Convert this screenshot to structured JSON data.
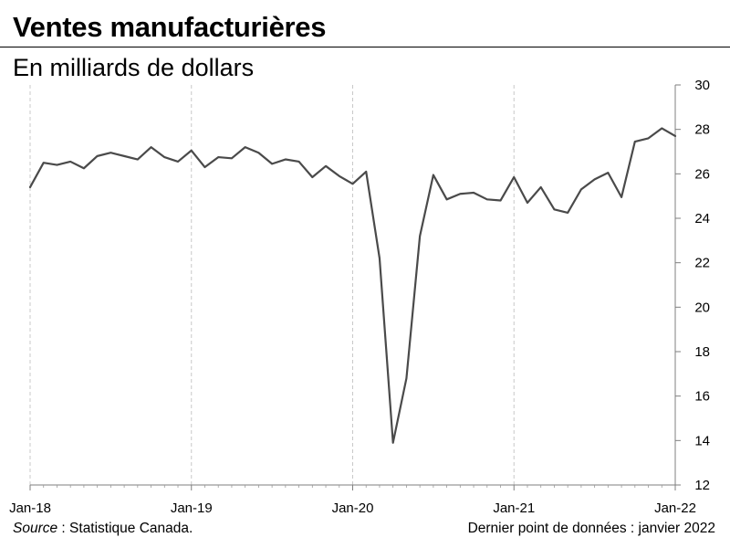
{
  "header": {
    "title": "Ventes manufacturières",
    "subtitle": "En milliards de dollars"
  },
  "footer": {
    "source_label": "Source",
    "source_text": " : Statistique Canada.",
    "last_point": "Dernier point de données : janvier 2022"
  },
  "chart_data": {
    "type": "line",
    "title": "Ventes manufacturières",
    "subtitle": "En milliards de dollars",
    "xlabel": "",
    "ylabel": "",
    "x_ticks": [
      "Jan-18",
      "Jan-19",
      "Jan-20",
      "Jan-21",
      "Jan-22"
    ],
    "ylim": [
      12,
      30
    ],
    "y_ticks": [
      12,
      14,
      16,
      18,
      20,
      22,
      24,
      26,
      28,
      30
    ],
    "y_axis_position": "right",
    "grid": "vertical dashed at January",
    "x_start": "2018-01",
    "x_end": "2022-01",
    "series": [
      {
        "color": "#4a4a4a",
        "values": [
          25.4,
          26.5,
          26.4,
          26.55,
          26.25,
          26.8,
          26.95,
          26.8,
          26.65,
          27.2,
          26.75,
          26.55,
          27.05,
          26.3,
          26.75,
          26.7,
          27.2,
          26.95,
          26.45,
          26.65,
          26.55,
          25.85,
          26.35,
          25.9,
          25.55,
          26.1,
          22.2,
          13.9,
          16.8,
          23.2,
          25.95,
          24.85,
          25.1,
          25.15,
          24.85,
          24.8,
          25.85,
          24.7,
          25.4,
          24.4,
          24.25,
          25.3,
          25.75,
          26.05,
          24.95,
          27.45,
          27.6,
          28.05,
          27.7
        ]
      }
    ]
  }
}
